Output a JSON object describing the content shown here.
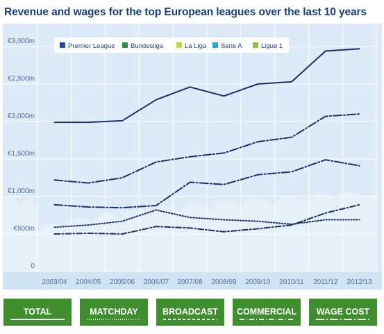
{
  "page": {
    "title": "Revenue and wages for the top European leagues over the last 10 years"
  },
  "colors": {
    "line": "#1a2f6e",
    "plot_bg": "#dcebf7",
    "grid": "#ffffff",
    "axis_text": "#5570a0",
    "tab_bg": "#3f8f2e",
    "legend_premier": "#1e4ea8",
    "legend_bundesliga": "#2e9148",
    "legend_laliga": "#c5d93a",
    "legend_seriea": "#22a6dd",
    "legend_ligue1": "#8fc63f"
  },
  "tabs": [
    {
      "label": "TOTAL",
      "line_style": "solid"
    },
    {
      "label": "MATCHDAY",
      "line_style": "dotted"
    },
    {
      "label": "BROADCAST",
      "line_style": "dashed"
    },
    {
      "label": "COMMERCIAL",
      "line_style": "dash-dot"
    },
    {
      "label": "WAGE COST",
      "line_style": "long-dash-dot"
    }
  ],
  "chart_data": {
    "type": "line",
    "title": "Revenue and wages for the top European leagues over the last 10 years",
    "xlabel": "",
    "ylabel": "",
    "categories": [
      "2003/04",
      "2004/05",
      "2005/06",
      "2006/07",
      "2007/08",
      "2008/09",
      "2009/10",
      "2010/11",
      "2011/12",
      "2012/13"
    ],
    "y_ticks": [
      {
        "value": 0,
        "label": "0"
      },
      {
        "value": 500,
        "label": "€500m"
      },
      {
        "value": 1000,
        "label": "€1,000m"
      },
      {
        "value": 1500,
        "label": "€1,500m"
      },
      {
        "value": 2000,
        "label": "€2,000m"
      },
      {
        "value": 2500,
        "label": "€2,500m"
      },
      {
        "value": 3000,
        "label": "€3,000m"
      }
    ],
    "ylim": [
      0,
      3000
    ],
    "grid": true,
    "legend": {
      "placement": "top-left",
      "items": [
        {
          "label": "Premier League",
          "color": "#1e4ea8"
        },
        {
          "label": "Bundesliga",
          "color": "#2e9148"
        },
        {
          "label": "La Liga",
          "color": "#c5d93a"
        },
        {
          "label": "Serie A",
          "color": "#22a6dd"
        },
        {
          "label": "Ligue 1",
          "color": "#8fc63f"
        }
      ]
    },
    "series": [
      {
        "style": "solid",
        "values": [
          1990,
          1990,
          2010,
          2290,
          2460,
          2340,
          2500,
          2530,
          2940,
          2970
        ]
      },
      {
        "style": "long-dash-dot",
        "values": [
          1220,
          1180,
          1250,
          1460,
          1530,
          1580,
          1730,
          1790,
          2070,
          2100
        ]
      },
      {
        "style": "long-dash-dot",
        "values": [
          890,
          860,
          850,
          880,
          1190,
          1160,
          1290,
          1330,
          1490,
          1410
        ]
      },
      {
        "style": "dotted",
        "values": [
          590,
          620,
          670,
          820,
          720,
          690,
          670,
          630,
          690,
          690
        ]
      },
      {
        "style": "dash-dot",
        "values": [
          500,
          510,
          500,
          600,
          580,
          530,
          570,
          620,
          780,
          890
        ]
      }
    ]
  }
}
